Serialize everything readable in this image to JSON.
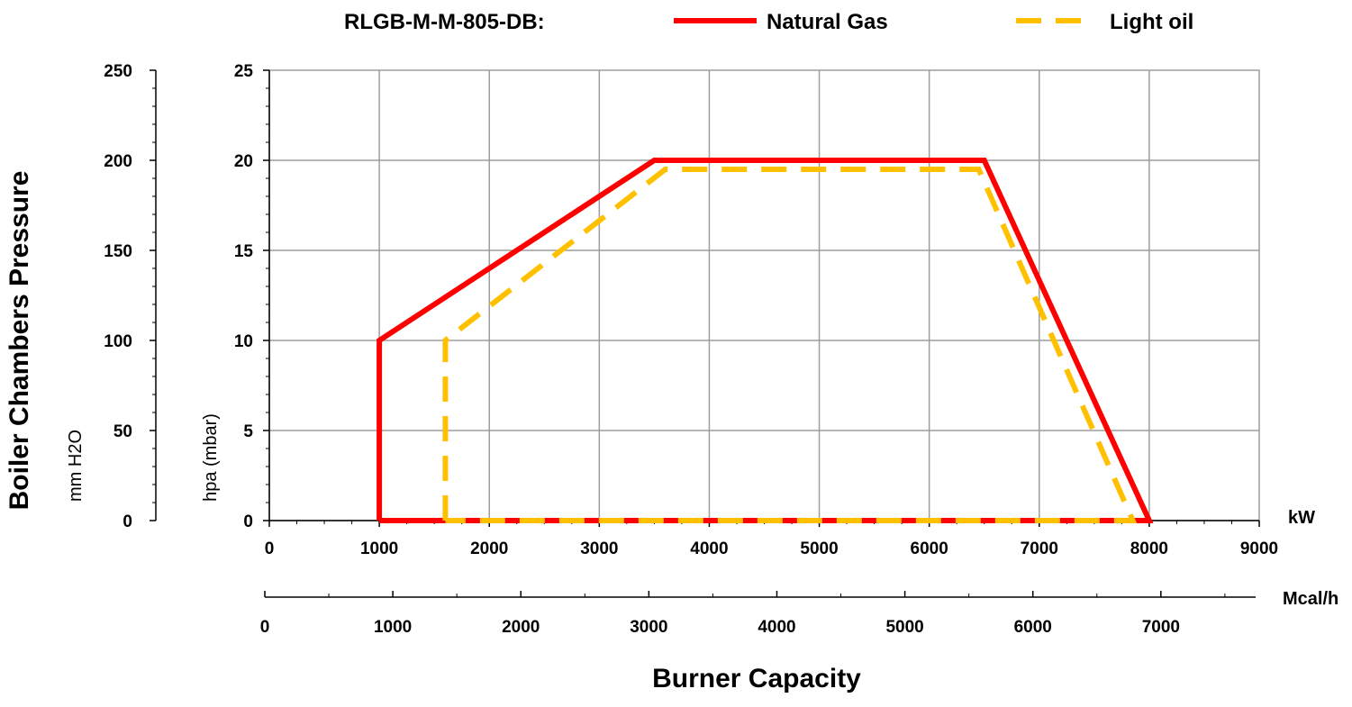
{
  "chart_data": {
    "type": "line",
    "title": "RLGB-M-M-805-DB:",
    "xlabel": "Burner Capacity",
    "ylabel": "Boiler Chambers Pressure",
    "x_axis": {
      "unit": "kW",
      "range": [
        0,
        9000
      ],
      "ticks": [
        "0",
        "1000",
        "2000",
        "3000",
        "4000",
        "5000",
        "6000",
        "7000",
        "8000",
        "9000"
      ]
    },
    "x2_axis": {
      "unit": "Mcal/h",
      "range": [
        0,
        7740
      ],
      "ticks": [
        "0",
        "1000",
        "2000",
        "3000",
        "4000",
        "5000",
        "6000",
        "7000"
      ],
      "tick_values": [
        0,
        1000,
        2000,
        3000,
        4000,
        5000,
        6000,
        7000
      ]
    },
    "y_axis": {
      "unit": "hpa (mbar)",
      "range": [
        0,
        25
      ],
      "ticks": [
        "0",
        "5",
        "10",
        "15",
        "20",
        "25"
      ]
    },
    "y2_axis": {
      "unit": "mm H2O",
      "range": [
        0,
        250
      ],
      "ticks": [
        "0",
        "50",
        "100",
        "150",
        "200",
        "250"
      ],
      "tick_values": [
        0,
        50,
        100,
        150,
        200,
        250
      ]
    },
    "grid": true,
    "legend": "top",
    "series": [
      {
        "name": "Natural Gas",
        "color": "#ff0000",
        "style": "solid",
        "x": [
          1000,
          1000,
          3500,
          6500,
          8000,
          1000
        ],
        "y": [
          0,
          10,
          20,
          20,
          0,
          0
        ]
      },
      {
        "name": "Light oil",
        "color": "#ffc000",
        "style": "dashed",
        "x": [
          1600,
          1600,
          3600,
          6450,
          7850,
          1600
        ],
        "y": [
          0,
          10,
          19.5,
          19.5,
          0,
          0
        ]
      }
    ]
  }
}
